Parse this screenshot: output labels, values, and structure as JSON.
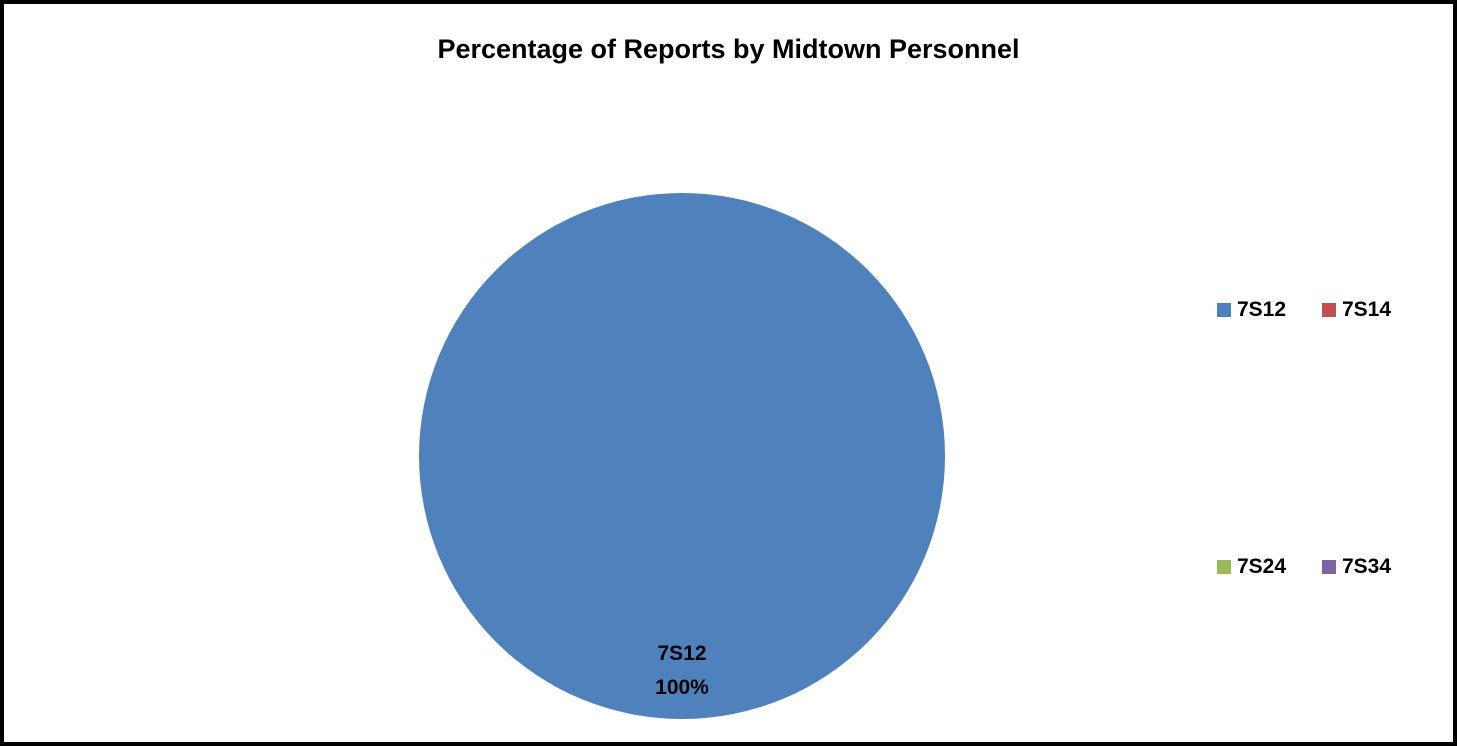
{
  "chart_data": {
    "type": "pie",
    "title": "Percentage of Reports by Midtown Personnel",
    "categories": [
      "7S12",
      "7S14",
      "7S24",
      "7S34"
    ],
    "values": [
      100,
      0,
      0,
      0
    ],
    "colors": [
      "#4f81bd",
      "#c0504d",
      "#9bbb59",
      "#8064a2"
    ],
    "data_labels": [
      {
        "category": "7S12",
        "percent": "100%"
      }
    ],
    "legend": {
      "placement": "right",
      "items": [
        {
          "label": "7S12",
          "color": "#4f81bd"
        },
        {
          "label": "7S14",
          "color": "#c0504d"
        },
        {
          "label": "7S24",
          "color": "#9bbb59"
        },
        {
          "label": "7S34",
          "color": "#8064a2"
        }
      ]
    }
  }
}
